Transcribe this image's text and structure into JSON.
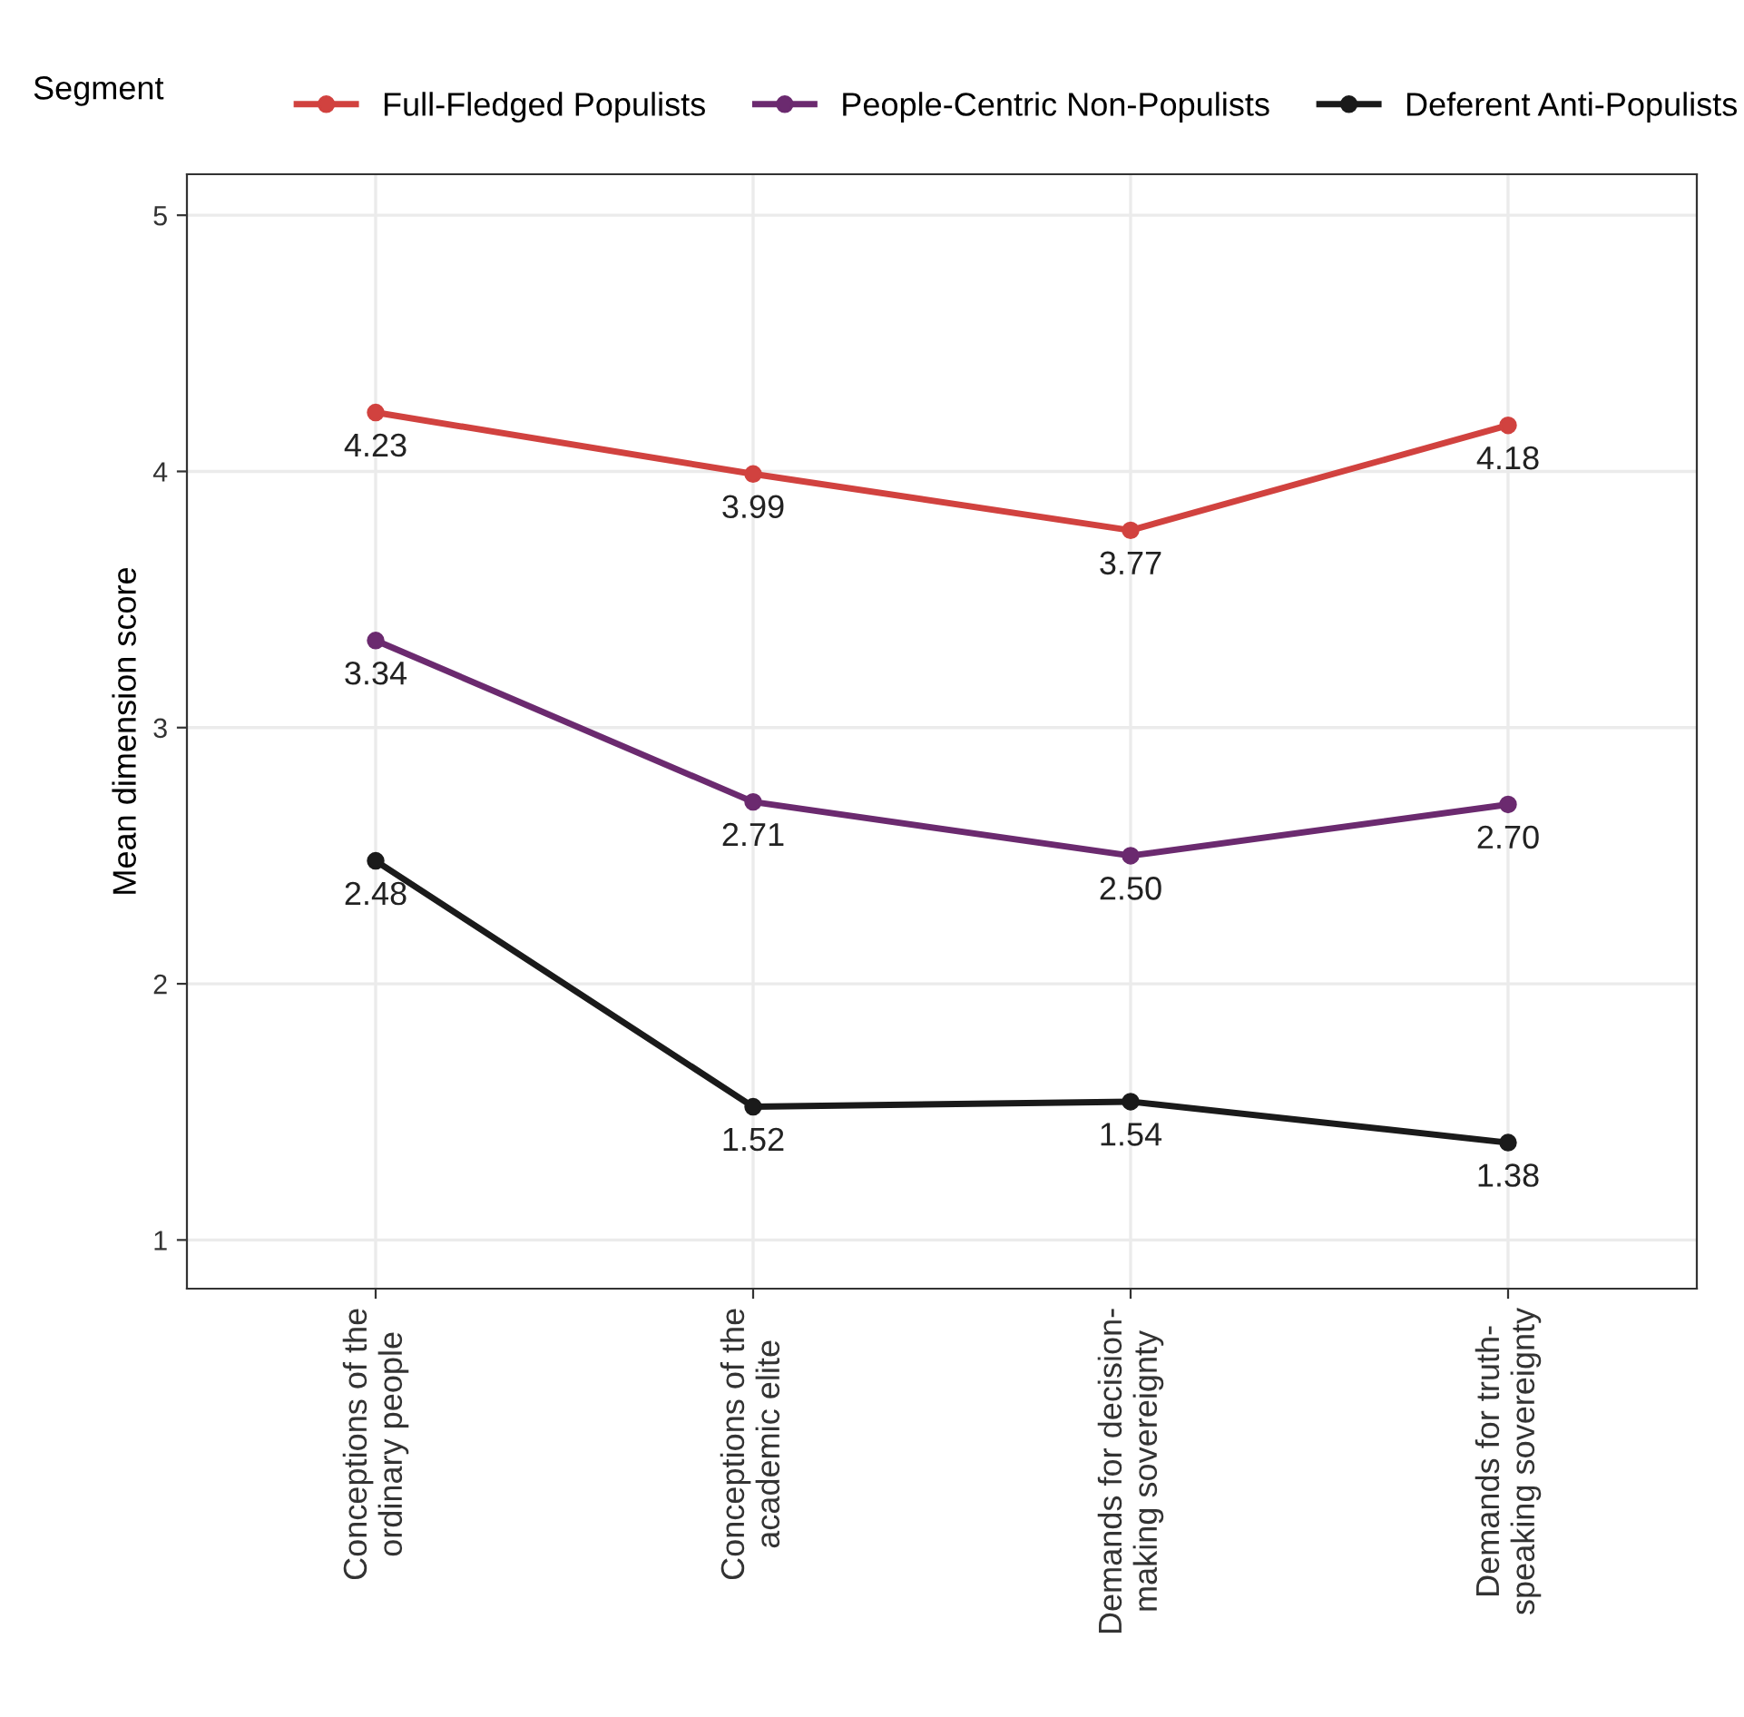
{
  "chart_data": {
    "type": "line",
    "ylabel": "Mean dimension score",
    "legend_title": "Segment",
    "categories": [
      "Conceptions of the\nordinary people",
      "Conceptions of the\nacademic elite",
      "Demands for decision-\nmaking sovereignty",
      "Demands for truth-\nspeaking sovereignty"
    ],
    "series": [
      {
        "name": "Full-Fledged Populists",
        "color": "#d1423f",
        "values": [
          4.23,
          3.99,
          3.77,
          4.18
        ],
        "value_labels": [
          "4.23",
          "3.99",
          "3.77",
          "4.18"
        ]
      },
      {
        "name": "People-Centric Non-Populists",
        "color": "#6b2a6f",
        "values": [
          3.34,
          2.71,
          2.5,
          2.7
        ],
        "value_labels": [
          "3.34",
          "2.71",
          "2.50",
          "2.70"
        ]
      },
      {
        "name": "Deferent Anti-Populists",
        "color": "#1a1a1a",
        "values": [
          2.48,
          1.52,
          1.54,
          1.38
        ],
        "value_labels": [
          "2.48",
          "1.52",
          "1.54",
          "1.38"
        ]
      }
    ],
    "ylim": [
      0.81,
      5.16
    ],
    "yticks": [
      1,
      2,
      3,
      4,
      5
    ],
    "grid": true,
    "legend": "top",
    "marker": "circle",
    "line_style": "solid"
  }
}
